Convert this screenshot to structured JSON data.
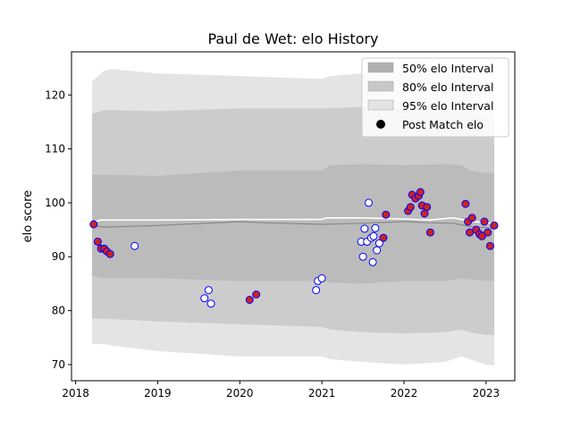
{
  "chart_data": {
    "type": "scatter",
    "title": "Paul de Wet: elo History",
    "xlabel": "",
    "ylabel": "elo score",
    "xlim": [
      2017.95,
      2023.35
    ],
    "ylim": [
      67,
      128
    ],
    "x_ticks": [
      2018,
      2019,
      2020,
      2021,
      2022,
      2023
    ],
    "y_ticks": [
      70,
      80,
      90,
      100,
      110,
      120
    ],
    "grid": false,
    "legend": {
      "position": "top-right",
      "entries": [
        {
          "label": "50% elo Interval",
          "kind": "band",
          "color": "#b0b0b0"
        },
        {
          "label": "80% elo Interval",
          "kind": "band",
          "color": "#c8c8c8"
        },
        {
          "label": "95% elo Interval",
          "kind": "band",
          "color": "#e4e4e4"
        },
        {
          "label": "Post Match elo",
          "kind": "marker",
          "color": "#000000"
        }
      ]
    },
    "bands": [
      {
        "name": "95% elo Interval",
        "color": "#e4e4e4",
        "x": [
          2018.2,
          2018.35,
          2018.45,
          2019.0,
          2020.0,
          2021.0,
          2021.1,
          2021.5,
          2022.0,
          2022.5,
          2022.7,
          2022.8,
          2023.0,
          2023.1
        ],
        "upper": [
          122.5,
          124.5,
          124.8,
          124.0,
          123.5,
          123.0,
          123.5,
          124.0,
          124.5,
          124.0,
          124.5,
          123.5,
          122.5,
          122.0
        ],
        "lower": [
          73.8,
          73.8,
          73.5,
          72.5,
          71.5,
          71.5,
          71.0,
          70.5,
          70.0,
          70.5,
          71.5,
          71.0,
          70.0,
          69.8
        ]
      },
      {
        "name": "80% elo Interval",
        "color": "#cccccc",
        "x": [
          2018.2,
          2018.35,
          2019.0,
          2020.0,
          2021.0,
          2021.1,
          2021.5,
          2022.0,
          2022.5,
          2022.7,
          2022.8,
          2023.0,
          2023.1
        ],
        "upper": [
          116.5,
          117.2,
          117.0,
          117.5,
          117.5,
          117.5,
          117.8,
          117.5,
          117.5,
          117.5,
          116.5,
          115.8,
          115.5
        ],
        "lower": [
          78.5,
          78.5,
          78.0,
          77.5,
          77.0,
          76.5,
          76.0,
          75.8,
          76.0,
          76.5,
          76.0,
          75.5,
          75.5
        ]
      },
      {
        "name": "50% elo Interval",
        "color": "#bbbbbb",
        "x": [
          2018.2,
          2018.35,
          2019.0,
          2020.0,
          2021.0,
          2021.1,
          2021.5,
          2022.0,
          2022.5,
          2022.7,
          2022.8,
          2023.0,
          2023.1
        ],
        "upper": [
          105.2,
          105.2,
          105.0,
          106.0,
          106.0,
          107.0,
          107.2,
          107.0,
          107.2,
          107.0,
          106.0,
          105.5,
          105.5
        ],
        "lower": [
          86.5,
          86.0,
          86.0,
          85.5,
          85.5,
          85.2,
          85.0,
          85.5,
          85.5,
          86.0,
          85.8,
          85.5,
          85.5
        ]
      }
    ],
    "mean_lines": [
      {
        "color": "#ffffff",
        "width": 1.6,
        "x": [
          2018.2,
          2018.3,
          2019.0,
          2020.0,
          2021.0,
          2021.05,
          2021.5,
          2022.0,
          2022.3,
          2022.6,
          2022.8,
          2023.0,
          2023.1
        ],
        "y": [
          96.3,
          96.8,
          96.8,
          96.9,
          96.9,
          97.2,
          97.2,
          97.0,
          96.8,
          97.2,
          96.6,
          96.3,
          96.2
        ]
      },
      {
        "color": "#888888",
        "width": 1.2,
        "x": [
          2018.2,
          2018.35,
          2019.0,
          2020.0,
          2020.3,
          2021.0,
          2021.5,
          2022.0,
          2022.3,
          2022.6,
          2022.8,
          2023.0,
          2023.1
        ],
        "y": [
          95.8,
          95.5,
          95.8,
          96.5,
          96.3,
          96.0,
          96.2,
          96.5,
          96.3,
          96.2,
          95.6,
          95.4,
          95.3
        ]
      }
    ],
    "points": {
      "name": "Post Match elo",
      "x": [
        2018.22,
        2018.27,
        2018.31,
        2018.35,
        2018.38,
        2018.42,
        2018.72,
        2019.57,
        2019.62,
        2019.65,
        2020.12,
        2020.2,
        2020.93,
        2020.95,
        2021.0,
        2021.48,
        2021.5,
        2021.52,
        2021.55,
        2021.57,
        2021.6,
        2021.62,
        2021.63,
        2021.65,
        2021.67,
        2021.7,
        2021.75,
        2021.78,
        2022.05,
        2022.08,
        2022.1,
        2022.14,
        2022.18,
        2022.2,
        2022.22,
        2022.25,
        2022.28,
        2022.32,
        2022.75,
        2022.78,
        2022.8,
        2022.83,
        2022.88,
        2022.92,
        2022.95,
        2022.98,
        2023.02,
        2023.05,
        2023.1
      ],
      "y": [
        96.0,
        92.8,
        91.5,
        91.5,
        91.0,
        90.5,
        92.0,
        82.3,
        83.8,
        81.3,
        82.0,
        83.0,
        83.8,
        85.5,
        86.0,
        92.8,
        90.0,
        95.2,
        92.8,
        100.0,
        93.5,
        89.0,
        93.8,
        95.3,
        91.2,
        92.5,
        93.5,
        97.8,
        98.5,
        99.2,
        101.5,
        100.8,
        101.3,
        102.0,
        99.5,
        98.0,
        99.2,
        94.5,
        99.8,
        96.5,
        94.5,
        97.2,
        95.0,
        94.2,
        93.8,
        96.5,
        94.5,
        92.0,
        95.8
      ],
      "won": [
        1,
        1,
        1,
        1,
        1,
        1,
        0,
        0,
        0,
        0,
        1,
        1,
        0,
        0,
        0,
        0,
        0,
        0,
        0,
        0,
        0,
        0,
        0,
        0,
        0,
        0,
        1,
        1,
        1,
        1,
        1,
        1,
        1,
        1,
        1,
        1,
        1,
        1,
        1,
        1,
        1,
        1,
        1,
        1,
        1,
        1,
        1,
        1,
        1
      ],
      "edge_color": "#0000ff",
      "fill_win": "#cc2222",
      "fill_loss": "#ffffff"
    }
  }
}
